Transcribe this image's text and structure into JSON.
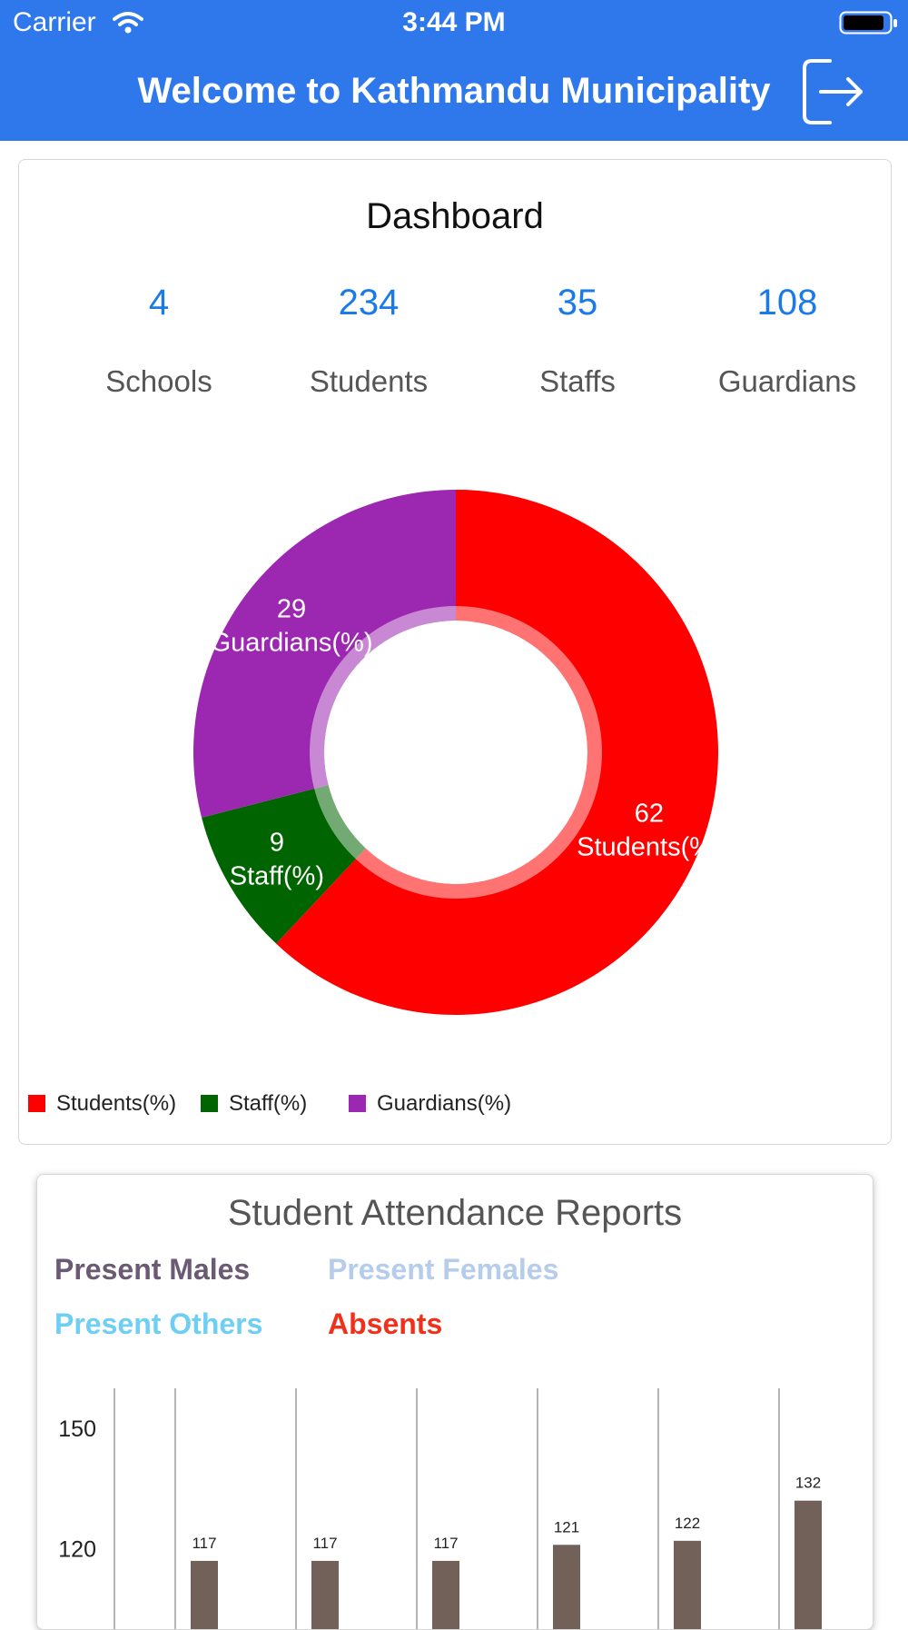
{
  "status_bar": {
    "carrier": "Carrier",
    "time": "3:44 PM"
  },
  "header": {
    "title": "Welcome to Kathmandu Municipality",
    "logout_icon": "logout-icon"
  },
  "dashboard": {
    "title": "Dashboard",
    "stats": [
      {
        "value": "4",
        "label": "Schools"
      },
      {
        "value": "234",
        "label": "Students"
      },
      {
        "value": "35",
        "label": "Staffs"
      },
      {
        "value": "108",
        "label": "Guardians"
      }
    ]
  },
  "chart_data": [
    {
      "type": "pie",
      "donut": true,
      "slices": [
        {
          "label": "Students(%)",
          "value": 62,
          "color": "#ff0000"
        },
        {
          "label": "Staff(%)",
          "value": 9,
          "color": "#006400"
        },
        {
          "label": "Guardians(%)",
          "value": 29,
          "color": "#9c27b0"
        }
      ],
      "legend": "bottom-left"
    },
    {
      "type": "bar",
      "title": "Student Attendance Reports",
      "series_labels": [
        {
          "name": "Present Males",
          "color": "#6a5a73"
        },
        {
          "name": "Present Females",
          "color": "#b5cdea"
        },
        {
          "name": "Present Others",
          "color": "#6ccff3"
        },
        {
          "name": "Absents",
          "color": "#f0301a"
        }
      ],
      "values": [
        117,
        117,
        117,
        121,
        122,
        132
      ],
      "bar_color": "#726158",
      "y_ticks": [
        150,
        120
      ],
      "ylim_visible": [
        100,
        160
      ]
    }
  ]
}
